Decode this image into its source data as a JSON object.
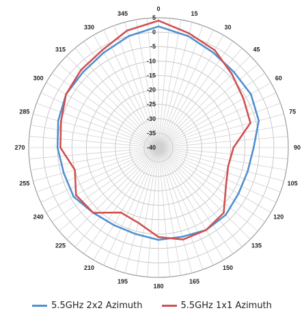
{
  "chart_data": {
    "type": "line",
    "subtype": "polar-radar",
    "angle_unit": "degrees",
    "angle_ticks": [
      0,
      15,
      30,
      45,
      60,
      75,
      90,
      105,
      120,
      135,
      150,
      165,
      180,
      195,
      210,
      225,
      240,
      255,
      270,
      285,
      300,
      315,
      330,
      345
    ],
    "radial_ticks": [
      5,
      0,
      -5,
      -10,
      -15,
      -20,
      -25,
      -30,
      -35,
      -40
    ],
    "radial_range": [
      -40,
      5
    ],
    "grid": true,
    "legend_position": "bottom",
    "series": [
      {
        "name": "5.5GHz 2x2 Azimuth",
        "color": "#4f8fd0",
        "angles": [
          0,
          15,
          30,
          45,
          60,
          75,
          90,
          105,
          120,
          135,
          150,
          165,
          180,
          195,
          210,
          225,
          240,
          255,
          270,
          285,
          300,
          315,
          330,
          345
        ],
        "values": [
          2,
          0,
          -2,
          -3,
          -3,
          -4,
          -7,
          -8,
          -8,
          -7,
          -7,
          -8,
          -8,
          -9,
          -9,
          -8,
          -6,
          -6,
          -5,
          -4,
          -3,
          -3,
          -2,
          0
        ]
      },
      {
        "name": "5.5GHz 1x1 Azimuth",
        "color": "#d05050",
        "angles": [
          0,
          15,
          30,
          45,
          60,
          75,
          90,
          105,
          120,
          135,
          150,
          165,
          180,
          195,
          210,
          225,
          240,
          255,
          270,
          285,
          300,
          315,
          330,
          345
        ],
        "values": [
          4,
          1,
          -1,
          -4,
          -6,
          -7,
          -14,
          -15,
          -13,
          -8,
          -7,
          -7,
          -9,
          -13,
          -14,
          -8,
          -7,
          -10,
          -6,
          -5,
          -3,
          -2,
          -1,
          2
        ]
      }
    ]
  },
  "legend": {
    "items": [
      {
        "label": "5.5GHz 2x2 Azimuth",
        "color": "#4f8fd0"
      },
      {
        "label": "5.5GHz 1x1 Azimuth",
        "color": "#d05050"
      }
    ]
  }
}
